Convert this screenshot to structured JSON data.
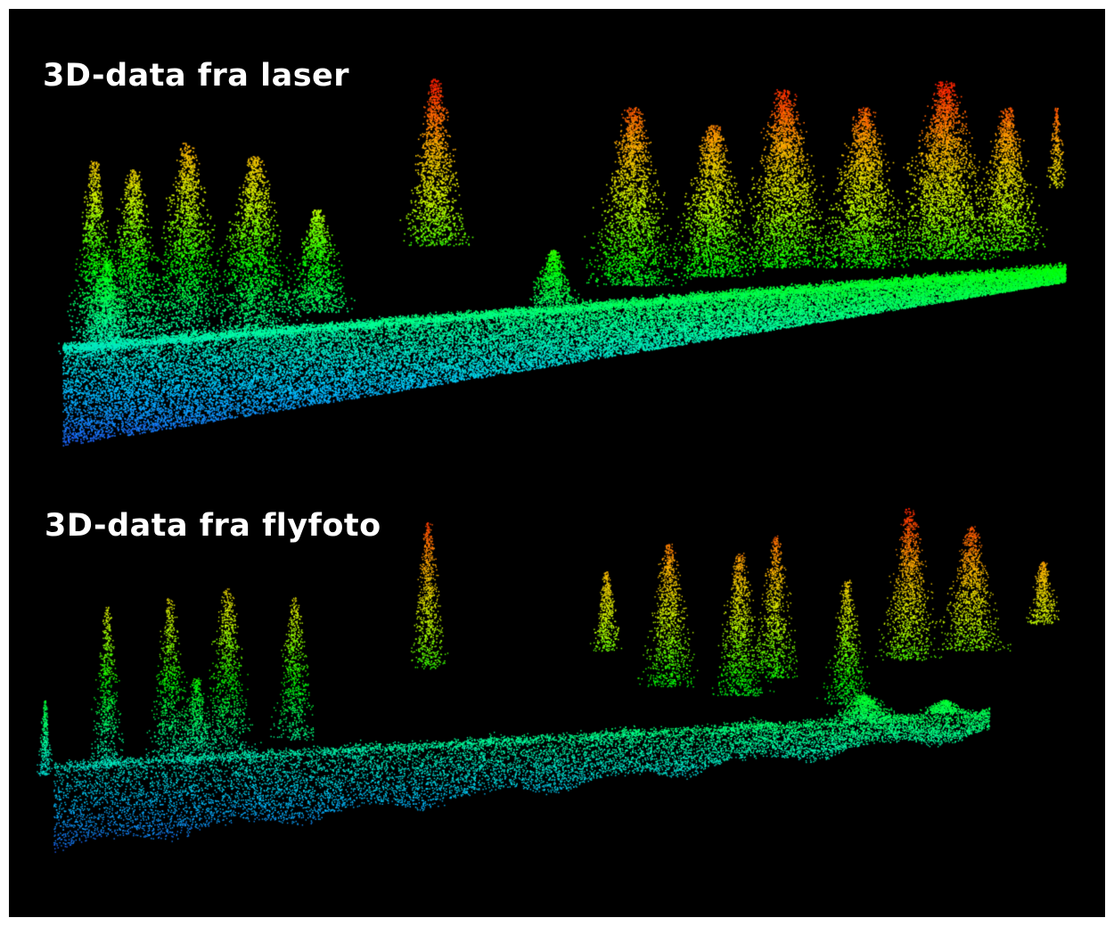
{
  "figure": {
    "background": "#000000",
    "border": "#ffffff",
    "colormap": [
      "#1f5fff",
      "#00c8ff",
      "#00ff9a",
      "#00ff00",
      "#c8ff00",
      "#ffb000",
      "#ff2000"
    ],
    "panels": [
      {
        "title": "3D-data fra laser",
        "style": "dense-point-cloud"
      },
      {
        "title": "3D-data fra flyfoto",
        "style": "sparse-noisy-point-cloud"
      }
    ]
  }
}
